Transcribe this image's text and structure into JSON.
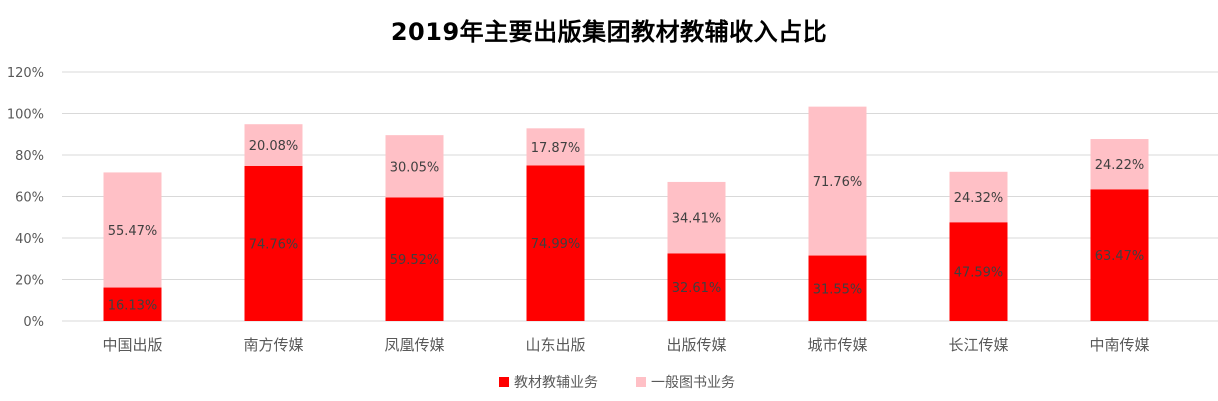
{
  "colors": {
    "series1": "#ff0000",
    "series2": "#ffc0c6",
    "grid": "#d9d9d9",
    "label_on_series1": "#404040",
    "label_on_series2": "#404040"
  },
  "chart_data": {
    "type": "bar",
    "stacked": true,
    "title": "2019年主要出版集团教材教辅收入占比",
    "categories": [
      "中国出版",
      "南方传媒",
      "凤凰传媒",
      "山东出版",
      "出版传媒",
      "城市传媒",
      "长江传媒",
      "中南传媒"
    ],
    "series": [
      {
        "name": "教材教辅业务",
        "values": [
          16.13,
          74.76,
          59.52,
          74.99,
          32.61,
          31.55,
          47.59,
          63.47
        ],
        "labels": [
          "16.13%",
          "74.76%",
          "59.52%",
          "74.99%",
          "32.61%",
          "31.55%",
          "47.59%",
          "63.47%"
        ]
      },
      {
        "name": "一般图书业务",
        "values": [
          55.47,
          20.08,
          30.05,
          17.87,
          34.41,
          71.76,
          24.32,
          24.22
        ],
        "labels": [
          "55.47%",
          "20.08%",
          "30.05%",
          "17.87%",
          "34.41%",
          "71.76%",
          "24.32%",
          "24.22%"
        ]
      }
    ],
    "ylim": [
      0,
      120
    ],
    "yticks": [
      0,
      20,
      40,
      60,
      80,
      100,
      120
    ],
    "ytick_labels": [
      "0%",
      "20%",
      "40%",
      "60%",
      "80%",
      "100%",
      "120%"
    ],
    "grid": true,
    "legend": "bottom",
    "xlabel": "",
    "ylabel": ""
  }
}
